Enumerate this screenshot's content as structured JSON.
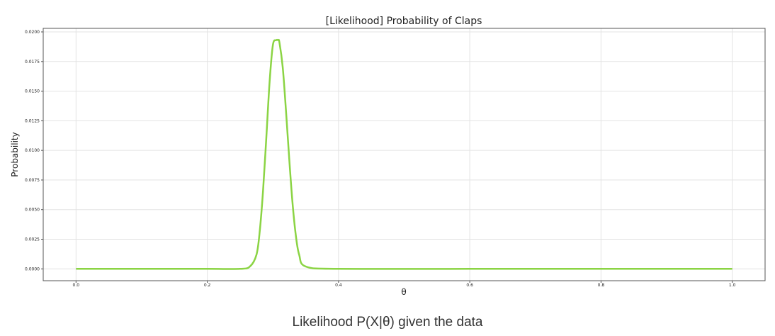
{
  "caption": "Likelihood P(X|θ) given the data",
  "colors": {
    "line": "#8bd444",
    "grid": "#e3e3e3",
    "axes": "#555555",
    "text": "#222222"
  },
  "chart_data": {
    "type": "line",
    "title": "[Likelihood] Probability of Claps",
    "xlabel": "θ",
    "ylabel": "Probability",
    "xlim": [
      -0.05,
      1.05
    ],
    "ylim": [
      -0.001,
      0.0203
    ],
    "grid": true,
    "x_ticks": [
      "0.0",
      "0.2",
      "0.4",
      "0.6",
      "0.8",
      "1.0"
    ],
    "y_ticks": [
      "0.0000",
      "0.0025",
      "0.0050",
      "0.0075",
      "0.0100",
      "0.0125",
      "0.0150",
      "0.0175",
      "0.0200"
    ],
    "series": [
      {
        "x": [
          0.0,
          0.1,
          0.2,
          0.25,
          0.265,
          0.275,
          0.28,
          0.285,
          0.29,
          0.295,
          0.3,
          0.305,
          0.308,
          0.31,
          0.315,
          0.32,
          0.325,
          0.33,
          0.335,
          0.34,
          0.35,
          0.4,
          0.6,
          0.8,
          1.0
        ],
        "y": [
          0.0,
          0.0,
          0.0,
          0.0,
          0.0002,
          0.0012,
          0.0032,
          0.0066,
          0.0111,
          0.0158,
          0.0189,
          0.0193,
          0.0193,
          0.0191,
          0.017,
          0.0133,
          0.0092,
          0.0055,
          0.0028,
          0.0012,
          0.0002,
          0.0,
          0.0,
          0.0,
          0.0
        ]
      }
    ]
  }
}
